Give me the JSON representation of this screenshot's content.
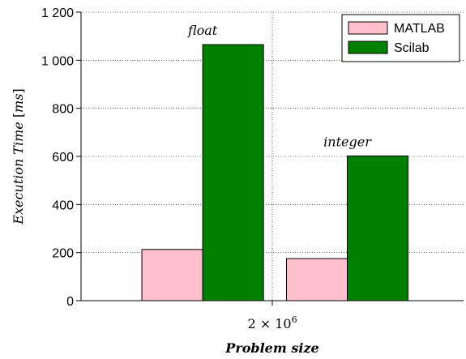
{
  "chart_data": {
    "type": "bar",
    "title": "",
    "xlabel": "Problem size",
    "ylabel_main": "Execution Time",
    "ylabel_unit": "ms",
    "x_tick": {
      "base": "2 × 10",
      "exponent": "6"
    },
    "ylim": [
      0,
      1200
    ],
    "yticks": [
      0,
      200,
      400,
      600,
      800,
      1000,
      1200
    ],
    "ytick_labels": [
      "0",
      "200",
      "400",
      "600",
      "800",
      "1 000",
      "1 200"
    ],
    "grid": true,
    "legend_position": "top-right",
    "groups": [
      {
        "label": "float",
        "values": {
          "MATLAB": 213,
          "Scilab": 1065
        }
      },
      {
        "label": "integer",
        "values": {
          "MATLAB": 175,
          "Scilab": 602
        }
      }
    ],
    "series": [
      {
        "name": "MATLAB",
        "color": "#ffc0cb"
      },
      {
        "name": "Scilab",
        "color": "#008000"
      }
    ]
  }
}
